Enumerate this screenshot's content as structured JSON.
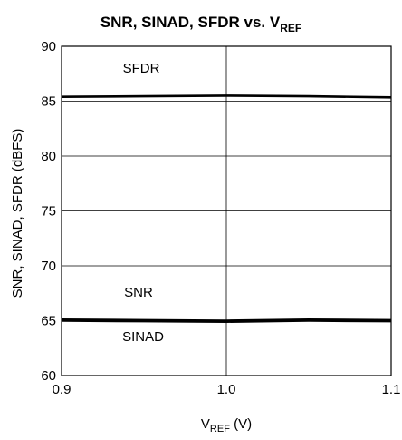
{
  "chart_data": {
    "type": "line",
    "title": {
      "main": "SNR, SINAD, SFDR vs. V",
      "sub": "REF"
    },
    "xlabel": {
      "main": "V",
      "sub": "REF",
      "suffix": " (V)"
    },
    "ylabel": "SNR, SINAD, SFDR (dBFS)",
    "xlim": [
      0.9,
      1.1
    ],
    "ylim": [
      60,
      90
    ],
    "xticks": [
      "0.9",
      "1.0",
      "1.1"
    ],
    "yticks": [
      "60",
      "65",
      "70",
      "75",
      "80",
      "85",
      "90"
    ],
    "grid": true,
    "series": [
      {
        "name": "SFDR",
        "x": [
          0.9,
          0.95,
          1.0,
          1.05,
          1.1
        ],
        "y": [
          85.4,
          85.45,
          85.5,
          85.45,
          85.35
        ]
      },
      {
        "name": "SNR",
        "x": [
          0.9,
          0.95,
          1.0,
          1.05,
          1.1
        ],
        "y": [
          65.1,
          65.05,
          65.0,
          65.1,
          65.05
        ]
      },
      {
        "name": "SINAD",
        "x": [
          0.9,
          0.95,
          1.0,
          1.05,
          1.1
        ],
        "y": [
          65.0,
          64.95,
          64.9,
          65.0,
          64.95
        ]
      }
    ]
  }
}
